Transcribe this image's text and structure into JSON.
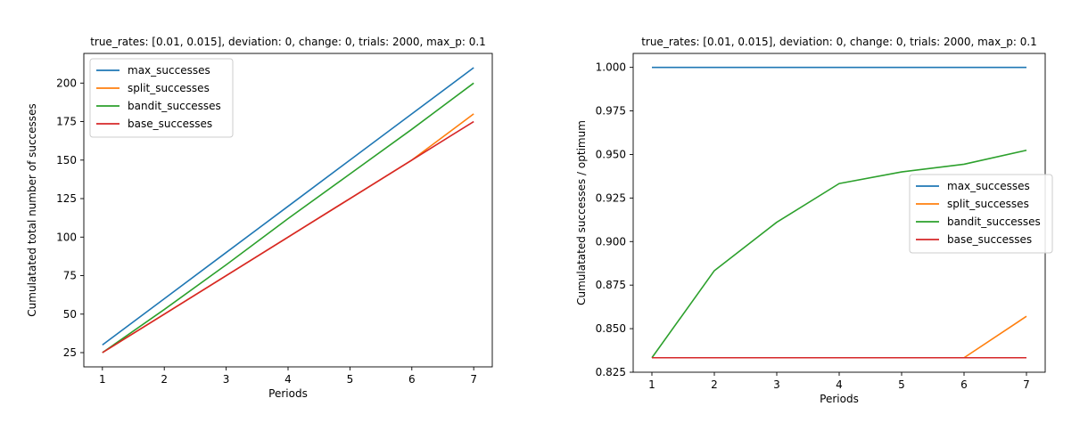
{
  "chart_data": [
    {
      "type": "line",
      "title": "true_rates: [0.01, 0.015], deviation: 0, change: 0, trials: 2000, max_p: 0.1",
      "xlabel": "Periods",
      "ylabel": "Cumulatated total number of successes",
      "x": [
        1,
        2,
        3,
        4,
        5,
        6,
        7
      ],
      "xlim": [
        0.7,
        7.3
      ],
      "ylim": [
        15.75,
        219.25
      ],
      "xticks": [
        1,
        2,
        3,
        4,
        5,
        6,
        7
      ],
      "yticks": [
        25,
        50,
        75,
        100,
        125,
        150,
        175,
        200
      ],
      "legend": "upper-left",
      "grid": false,
      "series": [
        {
          "name": "max_successes",
          "color": "#1f77b4",
          "values": [
            30,
            60,
            90,
            120,
            150,
            180,
            210
          ]
        },
        {
          "name": "split_successes",
          "color": "#ff7f0e",
          "values": [
            25,
            50,
            75,
            100,
            125,
            150,
            180
          ]
        },
        {
          "name": "bandit_successes",
          "color": "#2ca02c",
          "values": [
            25,
            53,
            82,
            112,
            141,
            170,
            200
          ]
        },
        {
          "name": "base_successes",
          "color": "#d62728",
          "values": [
            25,
            50,
            75,
            100,
            125,
            150,
            175
          ]
        }
      ]
    },
    {
      "type": "line",
      "title": "true_rates: [0.01, 0.015], deviation: 0, change: 0, trials: 2000, max_p: 0.1",
      "xlabel": "Periods",
      "ylabel": "Cumulatated successes / optimum",
      "x": [
        1,
        2,
        3,
        4,
        5,
        6,
        7
      ],
      "xlim": [
        0.7,
        7.3
      ],
      "ylim": [
        0.825,
        1.008
      ],
      "xticks": [
        1,
        2,
        3,
        4,
        5,
        6,
        7
      ],
      "yticks": [
        0.825,
        0.85,
        0.875,
        0.9,
        0.925,
        0.95,
        0.975,
        1.0
      ],
      "ytick_labels": [
        "0.825",
        "0.850",
        "0.875",
        "0.900",
        "0.925",
        "0.950",
        "0.975",
        "1.000"
      ],
      "legend": "center-right",
      "grid": false,
      "series": [
        {
          "name": "max_successes",
          "color": "#1f77b4",
          "values": [
            1.0,
            1.0,
            1.0,
            1.0,
            1.0,
            1.0,
            1.0
          ]
        },
        {
          "name": "split_successes",
          "color": "#ff7f0e",
          "values": [
            0.8333,
            0.8333,
            0.8333,
            0.8333,
            0.8333,
            0.8333,
            0.8571
          ]
        },
        {
          "name": "bandit_successes",
          "color": "#2ca02c",
          "values": [
            0.8333,
            0.8833,
            0.9111,
            0.9333,
            0.94,
            0.9444,
            0.9524
          ]
        },
        {
          "name": "base_successes",
          "color": "#d62728",
          "values": [
            0.8333,
            0.8333,
            0.8333,
            0.8333,
            0.8333,
            0.8333,
            0.8333
          ]
        }
      ]
    }
  ]
}
